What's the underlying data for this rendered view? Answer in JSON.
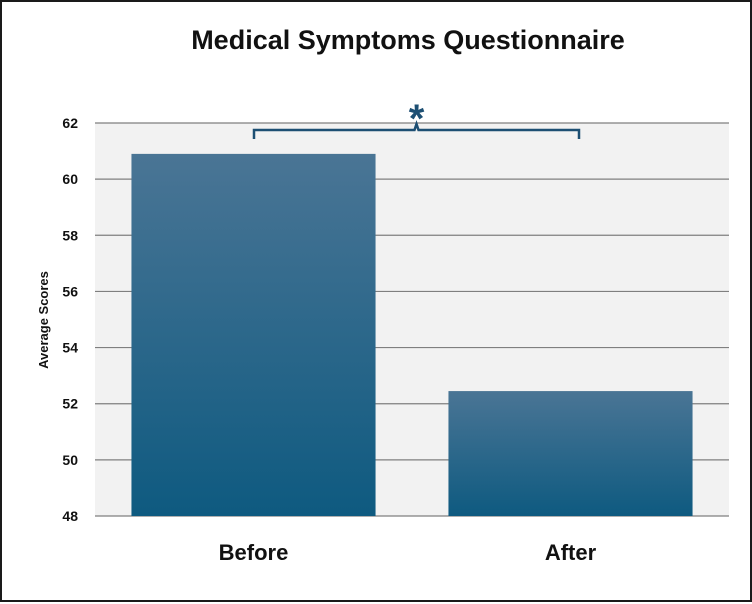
{
  "chart_data": {
    "type": "bar",
    "title": "Medical Symptoms Questionnaire",
    "xlabel": "",
    "ylabel": "Average Scores",
    "categories": [
      "Before",
      "After"
    ],
    "values": [
      60.9,
      52.45
    ],
    "ylim": [
      48,
      62
    ],
    "yticks": [
      48,
      50,
      52,
      54,
      56,
      58,
      60,
      62
    ],
    "grid": true,
    "legend": "none",
    "annotation": "*",
    "colors": {
      "bar_top": "#4a7595",
      "bar_bottom": "#0e5a80",
      "plot_bg": "#f2f2f2",
      "grid": "#7f7f7f",
      "bracket": "#1d4f73"
    }
  }
}
